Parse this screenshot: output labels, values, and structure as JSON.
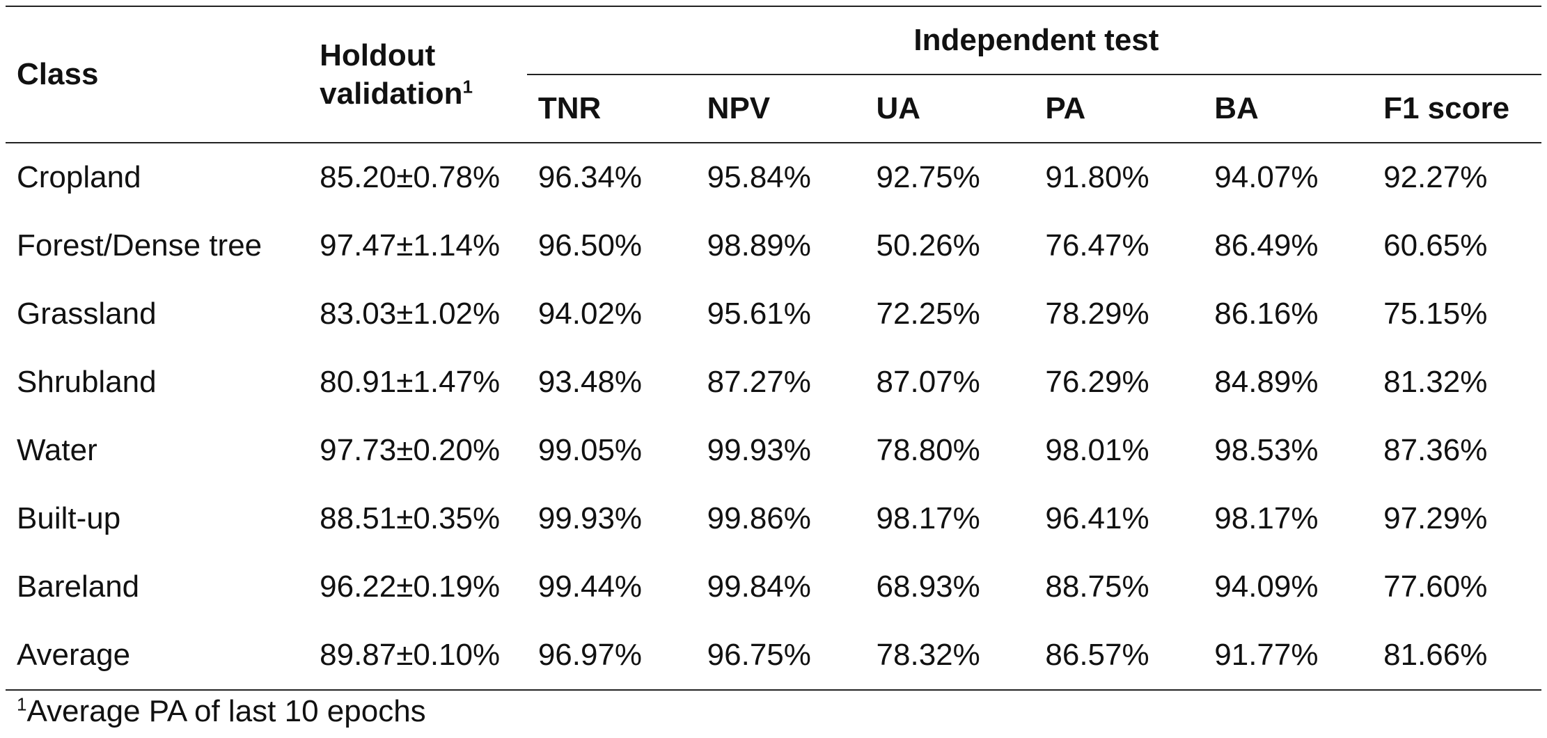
{
  "table": {
    "header": {
      "class_label": "Class",
      "holdout_line1": "Holdout",
      "holdout_line2": "validation",
      "holdout_sup": "1",
      "group_label": "Independent test",
      "metrics": [
        "TNR",
        "NPV",
        "UA",
        "PA",
        "BA",
        "F1 score"
      ]
    },
    "rows": [
      {
        "class": "Cropland",
        "holdout": "85.20±0.78%",
        "values": [
          "96.34%",
          "95.84%",
          "92.75%",
          "91.80%",
          "94.07%",
          "92.27%"
        ]
      },
      {
        "class": "Forest/Dense tree",
        "holdout": "97.47±1.14%",
        "values": [
          "96.50%",
          "98.89%",
          "50.26%",
          "76.47%",
          "86.49%",
          "60.65%"
        ]
      },
      {
        "class": "Grassland",
        "holdout": "83.03±1.02%",
        "values": [
          "94.02%",
          "95.61%",
          "72.25%",
          "78.29%",
          "86.16%",
          "75.15%"
        ]
      },
      {
        "class": "Shrubland",
        "holdout": "80.91±1.47%",
        "values": [
          "93.48%",
          "87.27%",
          "87.07%",
          "76.29%",
          "84.89%",
          "81.32%"
        ]
      },
      {
        "class": "Water",
        "holdout": "97.73±0.20%",
        "values": [
          "99.05%",
          "99.93%",
          "78.80%",
          "98.01%",
          "98.53%",
          "87.36%"
        ]
      },
      {
        "class": "Built-up",
        "holdout": "88.51±0.35%",
        "values": [
          "99.93%",
          "99.86%",
          "98.17%",
          "96.41%",
          "98.17%",
          "97.29%"
        ]
      },
      {
        "class": "Bareland",
        "holdout": "96.22±0.19%",
        "values": [
          "99.44%",
          "99.84%",
          "68.93%",
          "88.75%",
          "94.09%",
          "77.60%"
        ]
      },
      {
        "class": "Average",
        "holdout": "89.87±0.10%",
        "values": [
          "96.97%",
          "96.75%",
          "78.32%",
          "86.57%",
          "91.77%",
          "81.66%"
        ]
      }
    ]
  },
  "footnote": {
    "sup": "1",
    "text": "Average PA of last 10 epochs"
  }
}
